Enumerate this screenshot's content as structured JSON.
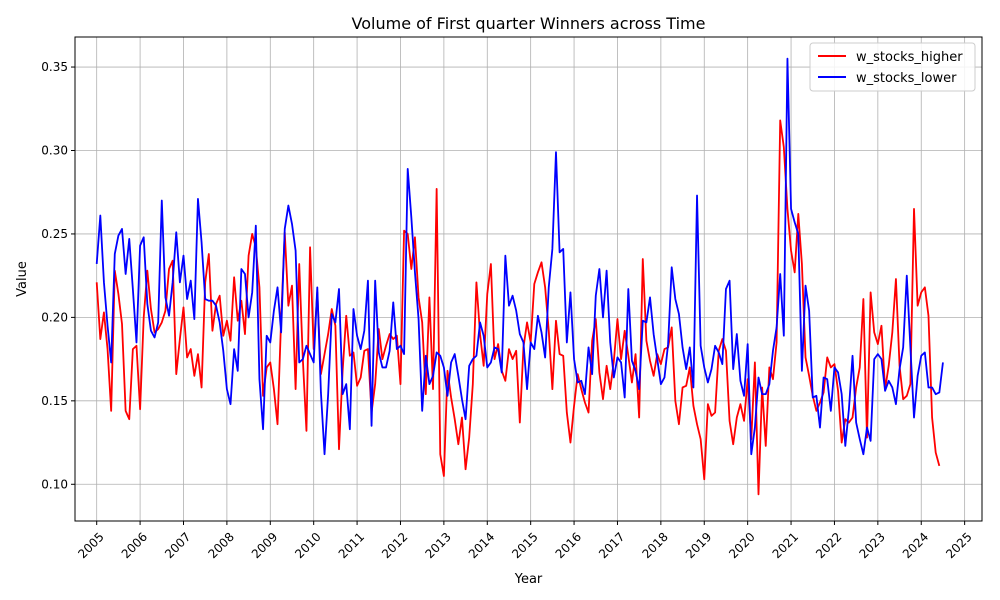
{
  "chart_data": {
    "type": "line",
    "title": "Volume of First quarter Winners across Time",
    "xlabel": "Year",
    "ylabel": "Value",
    "xlim": [
      2004.5,
      2025.4
    ],
    "ylim": [
      0.078,
      0.368
    ],
    "xticks": [
      "2005",
      "2006",
      "2007",
      "2008",
      "2009",
      "2010",
      "2011",
      "2012",
      "2013",
      "2014",
      "2015",
      "2016",
      "2017",
      "2018",
      "2019",
      "2020",
      "2021",
      "2022",
      "2023",
      "2024",
      "2025"
    ],
    "yticks": [
      "0.10",
      "0.15",
      "0.20",
      "0.25",
      "0.30",
      "0.35"
    ],
    "grid": true,
    "legend_position": "top-right",
    "x_start": "2005-01",
    "x_step": "1 month",
    "series": [
      {
        "name": "w_stocks_higher",
        "color": "#ff0000",
        "values": [
          0.221,
          0.187,
          0.203,
          0.181,
          0.144,
          0.228,
          0.214,
          0.196,
          0.144,
          0.139,
          0.181,
          0.183,
          0.145,
          0.2,
          0.228,
          0.205,
          0.191,
          0.193,
          0.197,
          0.204,
          0.229,
          0.234,
          0.166,
          0.187,
          0.206,
          0.176,
          0.181,
          0.165,
          0.178,
          0.158,
          0.221,
          0.238,
          0.192,
          0.208,
          0.213,
          0.189,
          0.198,
          0.186,
          0.224,
          0.198,
          0.21,
          0.19,
          0.237,
          0.25,
          0.242,
          0.218,
          0.153,
          0.17,
          0.173,
          0.157,
          0.136,
          0.199,
          0.251,
          0.207,
          0.219,
          0.157,
          0.232,
          0.175,
          0.132,
          0.242,
          0.181,
          0.215,
          0.166,
          0.178,
          0.19,
          0.205,
          0.195,
          0.121,
          0.168,
          0.201,
          0.177,
          0.179,
          0.159,
          0.164,
          0.18,
          0.181,
          0.143,
          0.16,
          0.193,
          0.175,
          0.183,
          0.19,
          0.187,
          0.189,
          0.16,
          0.252,
          0.25,
          0.229,
          0.248,
          0.212,
          0.197,
          0.154,
          0.212,
          0.157,
          0.277,
          0.118,
          0.105,
          0.168,
          0.152,
          0.139,
          0.124,
          0.14,
          0.109,
          0.128,
          0.16,
          0.221,
          0.19,
          0.171,
          0.214,
          0.232,
          0.175,
          0.184,
          0.168,
          0.162,
          0.181,
          0.175,
          0.18,
          0.137,
          0.182,
          0.197,
          0.185,
          0.22,
          0.227,
          0.233,
          0.218,
          0.192,
          0.157,
          0.198,
          0.178,
          0.177,
          0.143,
          0.125,
          0.147,
          0.166,
          0.157,
          0.149,
          0.143,
          0.186,
          0.199,
          0.167,
          0.151,
          0.171,
          0.157,
          0.174,
          0.199,
          0.175,
          0.192,
          0.177,
          0.161,
          0.178,
          0.14,
          0.235,
          0.186,
          0.174,
          0.165,
          0.178,
          0.172,
          0.181,
          0.182,
          0.194,
          0.15,
          0.136,
          0.158,
          0.159,
          0.17,
          0.147,
          0.136,
          0.127,
          0.103,
          0.148,
          0.141,
          0.143,
          0.18,
          0.187,
          0.18,
          0.138,
          0.124,
          0.14,
          0.148,
          0.138,
          0.163,
          0.127,
          0.173,
          0.094,
          0.158,
          0.123,
          0.17,
          0.163,
          0.185,
          0.318,
          0.302,
          0.265,
          0.24,
          0.227,
          0.262,
          0.232,
          0.176,
          0.165,
          0.153,
          0.144,
          0.149,
          0.155,
          0.176,
          0.17,
          0.172,
          0.156,
          0.125,
          0.139,
          0.137,
          0.14,
          0.158,
          0.17,
          0.211,
          0.128,
          0.215,
          0.191,
          0.184,
          0.195,
          0.157,
          0.171,
          0.191,
          0.223,
          0.171,
          0.151,
          0.153,
          0.16,
          0.265,
          0.207,
          0.215,
          0.218,
          0.201,
          0.14,
          0.119,
          0.111
        ]
      },
      {
        "name": "w_stocks_lower",
        "color": "#0000ff",
        "values": [
          0.232,
          0.261,
          0.221,
          0.195,
          0.173,
          0.238,
          0.249,
          0.253,
          0.226,
          0.247,
          0.217,
          0.185,
          0.243,
          0.248,
          0.208,
          0.192,
          0.188,
          0.197,
          0.27,
          0.212,
          0.201,
          0.221,
          0.251,
          0.221,
          0.237,
          0.211,
          0.222,
          0.199,
          0.271,
          0.245,
          0.211,
          0.21,
          0.21,
          0.207,
          0.197,
          0.18,
          0.157,
          0.148,
          0.181,
          0.168,
          0.229,
          0.226,
          0.2,
          0.215,
          0.255,
          0.163,
          0.133,
          0.189,
          0.185,
          0.204,
          0.218,
          0.191,
          0.253,
          0.267,
          0.256,
          0.24,
          0.173,
          0.175,
          0.183,
          0.178,
          0.173,
          0.218,
          0.155,
          0.118,
          0.154,
          0.202,
          0.197,
          0.217,
          0.154,
          0.16,
          0.133,
          0.205,
          0.189,
          0.181,
          0.192,
          0.222,
          0.135,
          0.222,
          0.179,
          0.17,
          0.17,
          0.18,
          0.209,
          0.181,
          0.183,
          0.178,
          0.289,
          0.26,
          0.227,
          0.199,
          0.144,
          0.177,
          0.16,
          0.165,
          0.179,
          0.177,
          0.17,
          0.153,
          0.173,
          0.178,
          0.165,
          0.151,
          0.139,
          0.171,
          0.175,
          0.177,
          0.197,
          0.189,
          0.17,
          0.173,
          0.182,
          0.181,
          0.167,
          0.237,
          0.207,
          0.213,
          0.204,
          0.19,
          0.185,
          0.157,
          0.185,
          0.181,
          0.201,
          0.191,
          0.176,
          0.218,
          0.241,
          0.299,
          0.239,
          0.241,
          0.185,
          0.215,
          0.175,
          0.161,
          0.162,
          0.154,
          0.182,
          0.166,
          0.213,
          0.229,
          0.2,
          0.228,
          0.185,
          0.164,
          0.176,
          0.173,
          0.152,
          0.217,
          0.174,
          0.168,
          0.157,
          0.198,
          0.197,
          0.212,
          0.19,
          0.175,
          0.16,
          0.164,
          0.184,
          0.23,
          0.211,
          0.202,
          0.182,
          0.169,
          0.182,
          0.158,
          0.273,
          0.183,
          0.17,
          0.161,
          0.169,
          0.183,
          0.179,
          0.172,
          0.217,
          0.222,
          0.169,
          0.19,
          0.162,
          0.153,
          0.184,
          0.118,
          0.134,
          0.164,
          0.154,
          0.154,
          0.16,
          0.18,
          0.194,
          0.226,
          0.189,
          0.355,
          0.265,
          0.257,
          0.25,
          0.168,
          0.219,
          0.204,
          0.152,
          0.153,
          0.134,
          0.164,
          0.163,
          0.144,
          0.17,
          0.167,
          0.154,
          0.123,
          0.145,
          0.177,
          0.137,
          0.127,
          0.118,
          0.134,
          0.126,
          0.175,
          0.178,
          0.175,
          0.156,
          0.162,
          0.158,
          0.148,
          0.169,
          0.182,
          0.225,
          0.182,
          0.14,
          0.165,
          0.177,
          0.179,
          0.158,
          0.158,
          0.154,
          0.155,
          0.173
        ]
      }
    ]
  }
}
